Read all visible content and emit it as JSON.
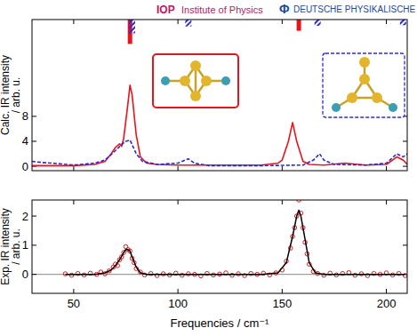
{
  "header": {
    "iop": "IOP",
    "iop_name": "Institute of Physics",
    "dpg_symbol": "Φ",
    "dpg_name": "DEUTSCHE PHYSIKALISCHE"
  },
  "chart_data": [
    {
      "type": "line",
      "y_label": [
        "Calc. IR intensity",
        "/ arb. u."
      ],
      "xlim": [
        30,
        210
      ],
      "xticks": [
        50,
        100,
        150,
        200
      ],
      "ylim": [
        -0.7,
        23.5
      ],
      "yticks": [
        0,
        4,
        8
      ],
      "tick_labels": "y",
      "series": [
        {
          "type": "line",
          "color": "#e8141b",
          "line_style": "solid",
          "x": [
            30,
            40,
            50,
            60,
            65,
            68,
            70,
            72,
            73,
            74,
            76,
            77,
            78,
            80,
            82,
            85,
            90,
            100,
            120,
            140,
            148,
            150,
            153,
            155,
            157,
            160,
            163,
            170,
            180,
            190,
            200,
            205,
            208,
            210
          ],
          "values": [
            0.1,
            0.1,
            0.1,
            0.3,
            0.8,
            2,
            3,
            3.6,
            3.2,
            4.5,
            10,
            13,
            11.5,
            5,
            1.5,
            0.5,
            0.3,
            0.2,
            0.2,
            0.2,
            0.5,
            1,
            4,
            7,
            4,
            0.8,
            0.3,
            0.2,
            0.5,
            0.2,
            0.3,
            1.5,
            1,
            0.3
          ]
        },
        {
          "type": "line",
          "color": "#2b2bd6",
          "line_style": "dashed",
          "x": [
            30,
            35,
            40,
            50,
            60,
            65,
            70,
            73,
            75,
            77,
            78,
            80,
            83,
            90,
            100,
            105,
            108,
            115,
            140,
            160,
            165,
            168,
            170,
            175,
            190,
            200,
            205,
            208,
            210
          ],
          "values": [
            0.8,
            0.6,
            0.5,
            0.2,
            0.5,
            1,
            2.5,
            3.5,
            4,
            4.2,
            3.5,
            2,
            0.8,
            0.3,
            0.5,
            1.2,
            0.5,
            0.1,
            0.1,
            0.2,
            1,
            2,
            1,
            0.3,
            0.2,
            0.5,
            2,
            1.5,
            2
          ]
        },
        {
          "type": "stick",
          "color": "#e8141b",
          "line_style": "solid",
          "x": [
            77,
            158
          ],
          "values": [
            19.6,
            21.7
          ]
        },
        {
          "type": "stick",
          "color": "#2b2bd6",
          "line_style": "hatched",
          "x": [
            78,
            105,
            167,
            208
          ],
          "values": [
            21.3,
            22.4,
            22.5,
            22.6
          ]
        }
      ]
    },
    {
      "type": "scatter",
      "y_label": [
        "Exp. IR intensity",
        "/ arb. u."
      ],
      "x_label": "Frequencies / cm⁻¹",
      "xlim": [
        30,
        210
      ],
      "xticks": [
        50,
        100,
        150,
        200
      ],
      "ylim": [
        -0.65,
        2.55
      ],
      "yticks": [
        0,
        1,
        2
      ],
      "series": [
        {
          "type": "scatter",
          "color": "#e8141b",
          "marker": "open-circle",
          "x": [
            46,
            49,
            52,
            55,
            58,
            61,
            63,
            65,
            67,
            69,
            70,
            71,
            72,
            73,
            74,
            75,
            76,
            77,
            78,
            79,
            80,
            82,
            84,
            87,
            90,
            93,
            96,
            99,
            102,
            105,
            108,
            111,
            114,
            117,
            120,
            123,
            126,
            129,
            132,
            135,
            138,
            141,
            144,
            147,
            150,
            152,
            154,
            155,
            156,
            157,
            158,
            159,
            160,
            161,
            162,
            163,
            165,
            167,
            170,
            173,
            176,
            179,
            182,
            185,
            188,
            191,
            194,
            197,
            200,
            203,
            206,
            209
          ],
          "values": [
            0.02,
            -0.03,
            0.03,
            -0.02,
            0.04,
            0.0,
            0.08,
            0.02,
            0.12,
            0.25,
            0.35,
            0.3,
            0.5,
            0.6,
            0.75,
            0.95,
            0.85,
            0.8,
            0.55,
            0.4,
            0.2,
            0.08,
            -0.02,
            0.03,
            -0.04,
            0.02,
            -0.02,
            0.04,
            -0.03,
            0.02,
            0.0,
            -0.05,
            0.03,
            -0.02,
            0.01,
            0.05,
            -0.03,
            0.02,
            -0.04,
            0.03,
            0.0,
            0.04,
            -0.02,
            0.05,
            0.15,
            0.45,
            0.9,
            1.3,
            1.6,
            2.0,
            2.55,
            2.1,
            1.6,
            1.1,
            0.7,
            0.35,
            0.1,
            0.03,
            -0.03,
            0.04,
            -0.02,
            0.03,
            0.06,
            -0.03,
            0.02,
            -0.04,
            0.03,
            0.0,
            0.05,
            -0.02,
            0.03,
            -0.04
          ]
        },
        {
          "type": "line",
          "color": "#000000",
          "line_style": "solid",
          "x": [
            46,
            60,
            65,
            68,
            70,
            72,
            74,
            75,
            76,
            77,
            78,
            80,
            82,
            85,
            100,
            140,
            148,
            152,
            155,
            157,
            158,
            159,
            161,
            163,
            166,
            170,
            209
          ],
          "values": [
            0,
            0,
            0.05,
            0.15,
            0.3,
            0.5,
            0.75,
            0.85,
            0.85,
            0.8,
            0.6,
            0.25,
            0.05,
            0,
            0,
            0,
            0.05,
            0.4,
            1.3,
            2.0,
            2.2,
            2.0,
            1.2,
            0.4,
            0.05,
            0,
            0
          ]
        }
      ]
    }
  ]
}
